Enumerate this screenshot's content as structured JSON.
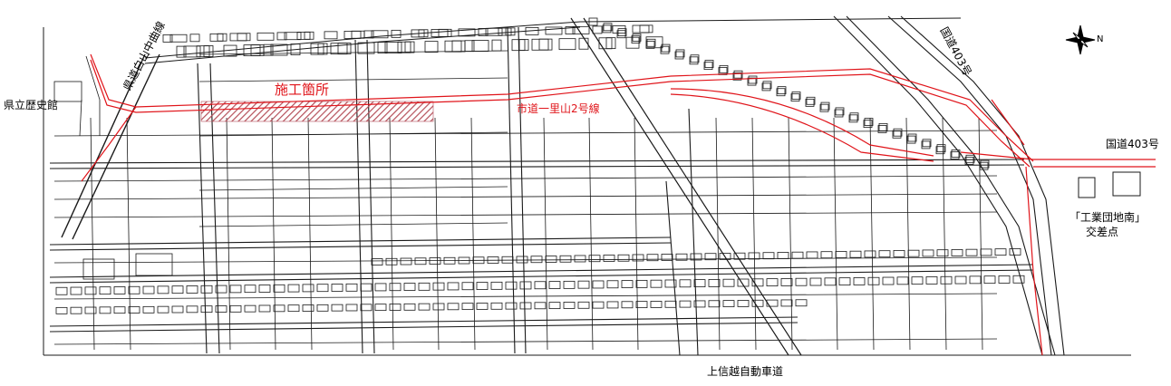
{
  "map": {
    "construction_site": "施工箇所",
    "city_road": "市道一里山2号線",
    "prefectural_road": "県道白山中曲線",
    "museum": "県立歴史館",
    "national_route_1": "国道403号",
    "national_route_2": "国道403号",
    "intersection_name": "「工業団地南」",
    "intersection_suffix": "交差点",
    "expressway": "上信越自動車道",
    "north_mark": "N",
    "colors": {
      "route": "#e0141a",
      "hatch": "#b5505a",
      "linework": "#1a1a1a"
    }
  }
}
